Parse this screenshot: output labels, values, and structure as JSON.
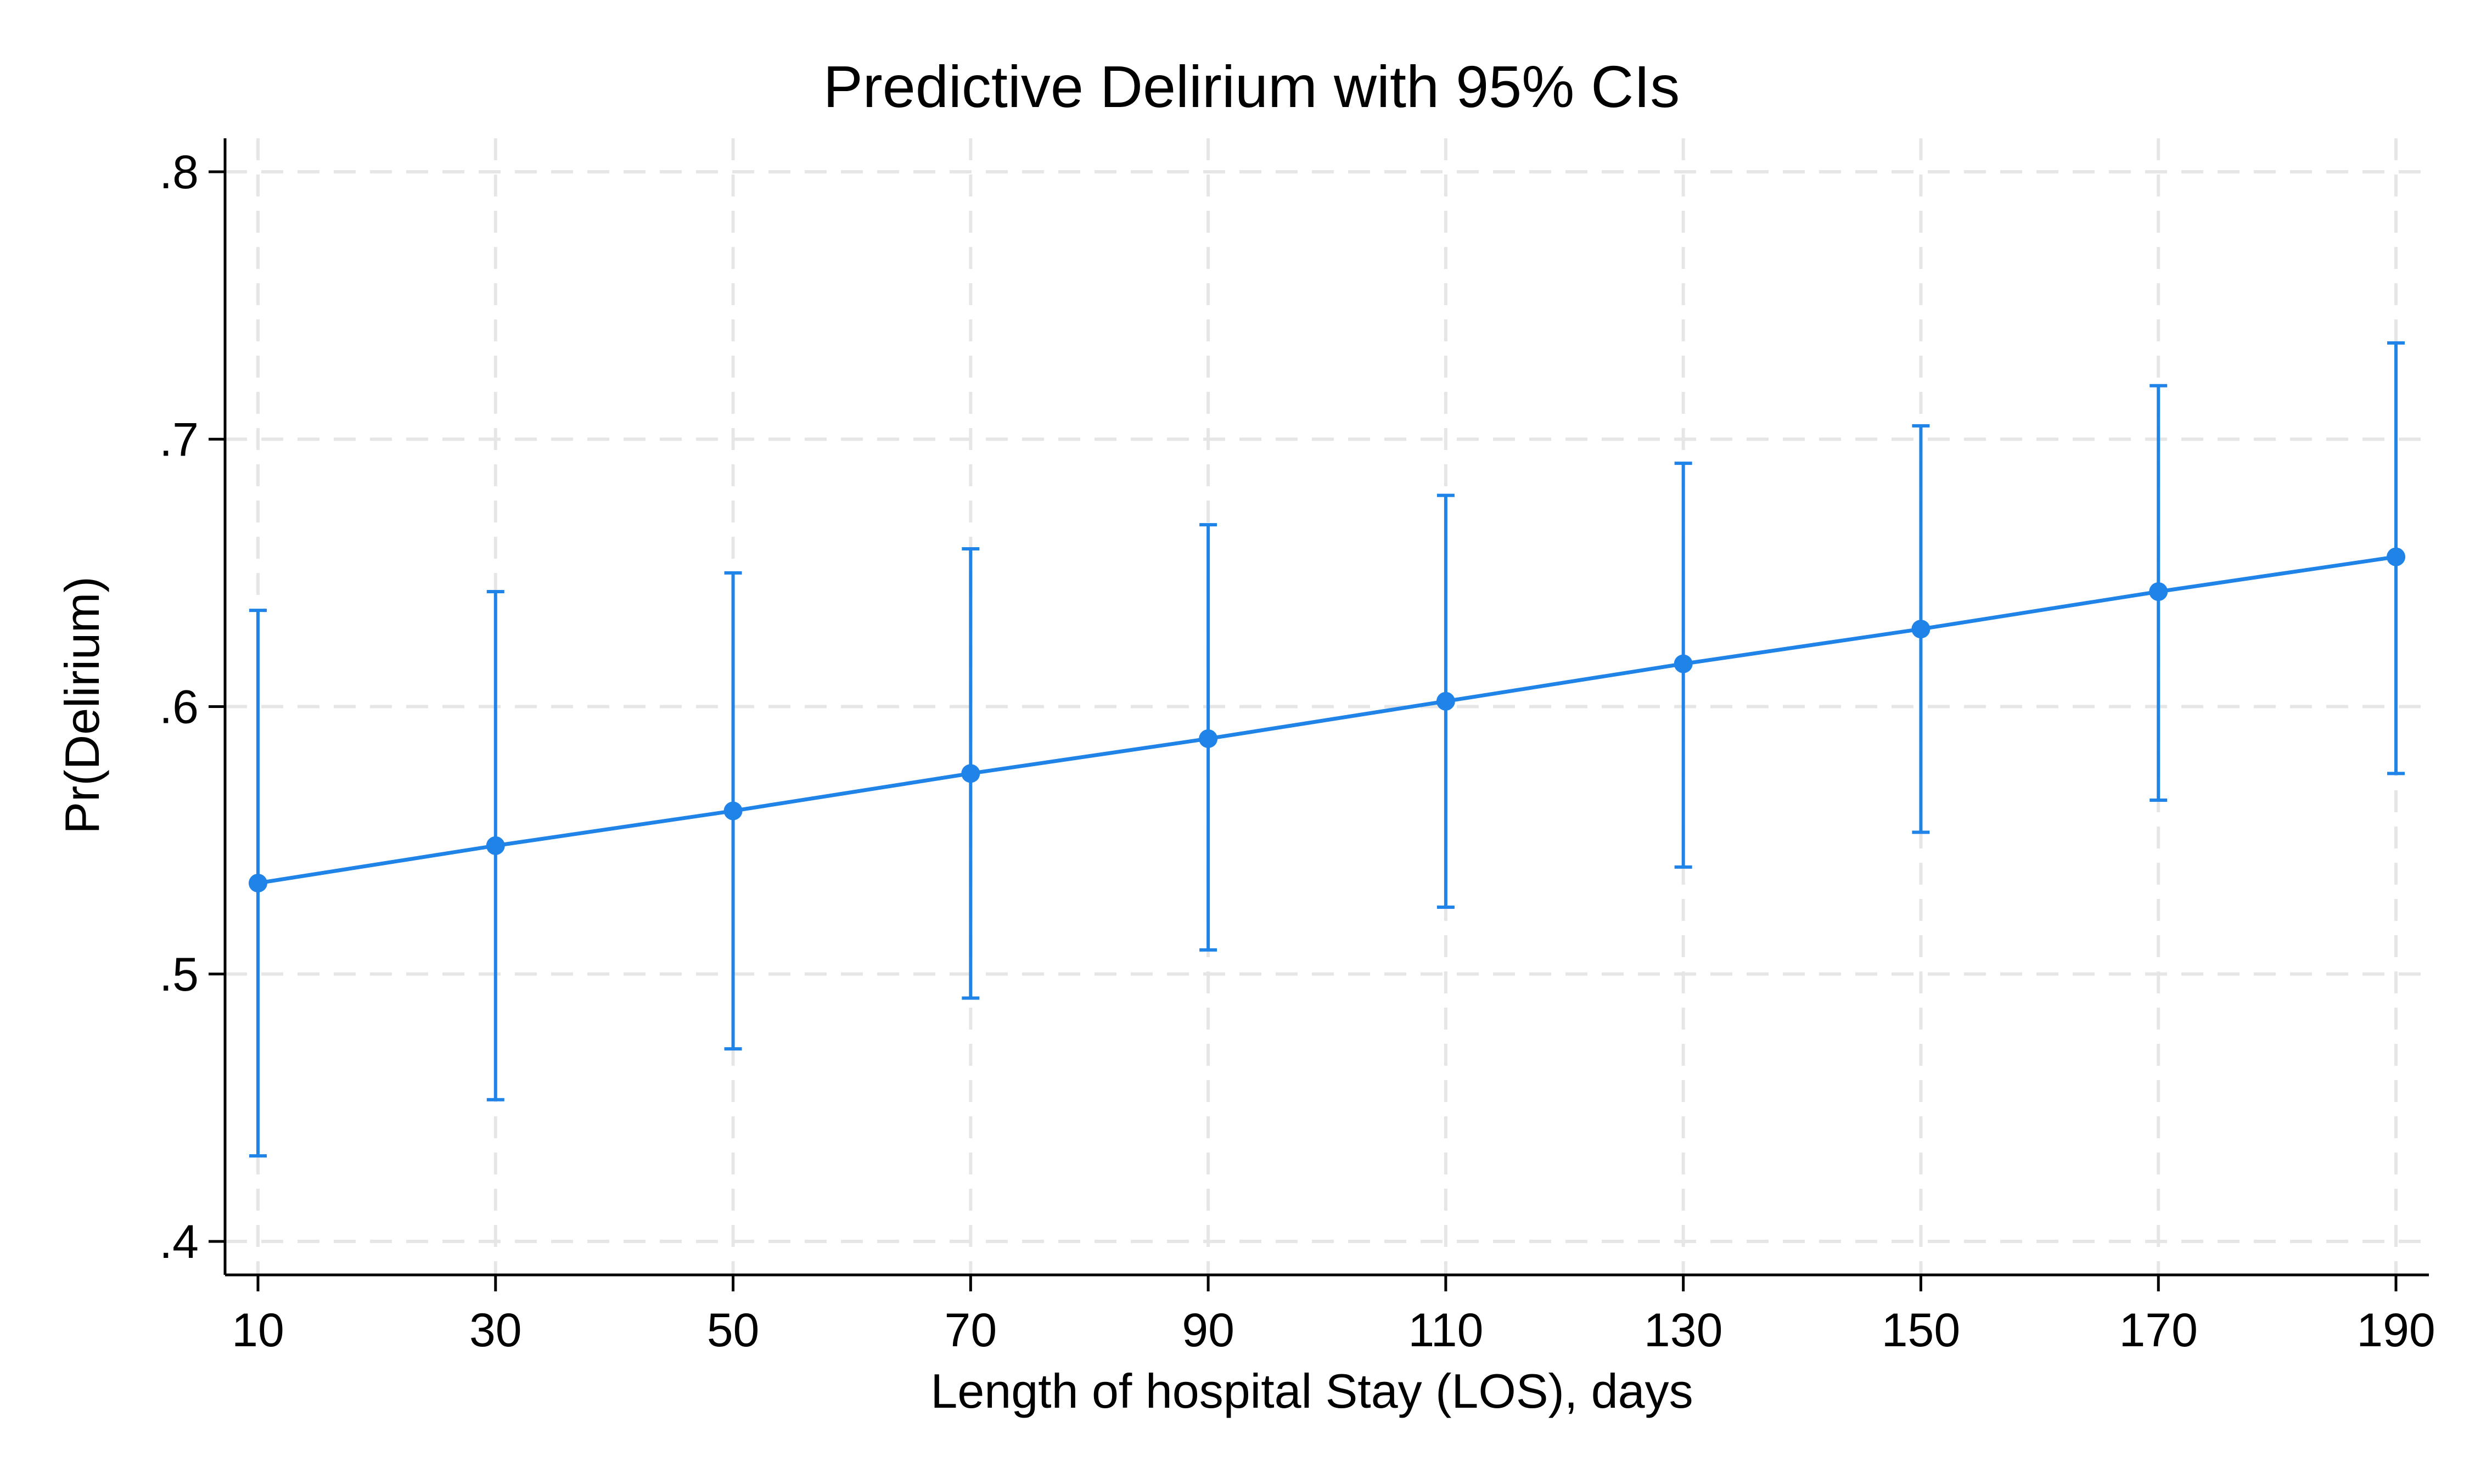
{
  "chart_data": {
    "type": "line",
    "title": "Predictive Delirium with 95% CIs",
    "xlabel": "Length of hospital Stay (LOS), days",
    "ylabel": "Pr(Delirium)",
    "x_ticks": [
      10,
      30,
      50,
      70,
      90,
      110,
      130,
      150,
      170,
      190
    ],
    "x_tick_labels": [
      "10",
      "30",
      "50",
      "70",
      "90",
      "110",
      "130",
      "150",
      "170",
      "190"
    ],
    "y_ticks": [
      0.4,
      0.5,
      0.6,
      0.7,
      0.8
    ],
    "y_tick_labels": [
      ".4",
      ".5",
      ".6",
      ".7",
      ".8"
    ],
    "xlim": [
      10,
      190
    ],
    "ylim": [
      0.4,
      0.8
    ],
    "grid": true,
    "legend": "none",
    "colors": {
      "series": "#1f83e8",
      "grid": "#e6e6e6",
      "axis": "#000000",
      "background": "#ffffff"
    },
    "series": [
      {
        "x": [
          10,
          30,
          50,
          70,
          90,
          110,
          130,
          150,
          170,
          190
        ],
        "values": [
          0.534,
          0.548,
          0.561,
          0.575,
          0.588,
          0.602,
          0.616,
          0.629,
          0.643,
          0.656
        ],
        "ci_lower": [
          0.432,
          0.453,
          0.472,
          0.491,
          0.509,
          0.525,
          0.54,
          0.553,
          0.565,
          0.575
        ],
        "ci_upper": [
          0.636,
          0.643,
          0.65,
          0.659,
          0.668,
          0.679,
          0.691,
          0.705,
          0.72,
          0.736
        ]
      }
    ]
  }
}
